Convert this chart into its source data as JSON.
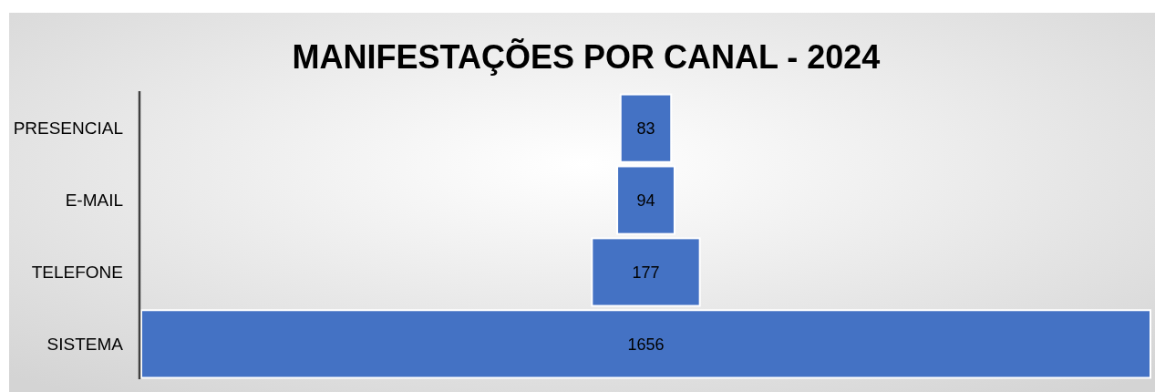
{
  "chart_data": {
    "type": "other",
    "title": "MANIFESTAÇÕES POR CANAL - 2024",
    "categories": [
      "PRESENCIAL",
      "E-MAIL",
      "TELEFONE",
      "SISTEMA"
    ],
    "values": [
      83,
      94,
      177,
      1656
    ],
    "color": "#4472c4",
    "data_labels": true
  }
}
